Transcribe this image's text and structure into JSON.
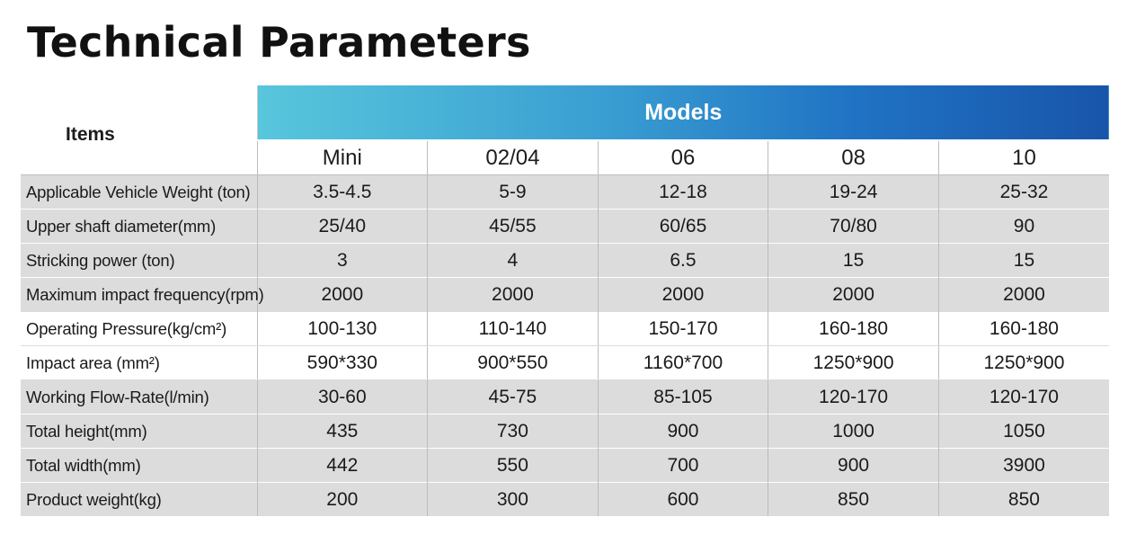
{
  "page": {
    "title": "Technical Parameters"
  },
  "table": {
    "items_header": "Items",
    "models_header": "Models",
    "models": [
      "Mini",
      "02/04",
      "06",
      "08",
      "10"
    ],
    "rows": [
      {
        "label": "Applicable Vehicle Weight (ton)",
        "values": [
          "3.5-4.5",
          "5-9",
          "12-18",
          "19-24",
          "25-32"
        ]
      },
      {
        "label": "Upper shaft diameter(mm)",
        "values": [
          "25/40",
          "45/55",
          "60/65",
          "70/80",
          "90"
        ]
      },
      {
        "label": "Stricking power (ton)",
        "values": [
          "3",
          "4",
          "6.5",
          "15",
          "15"
        ]
      },
      {
        "label": "Maximum impact frequency(rpm)",
        "values": [
          "2000",
          "2000",
          "2000",
          "2000",
          "2000"
        ]
      },
      {
        "label": "Operating Pressure(kg/cm²)",
        "values": [
          "100-130",
          "110-140",
          "150-170",
          "160-180",
          "160-180"
        ]
      },
      {
        "label": "Impact area (mm²)",
        "values": [
          "590*330",
          "900*550",
          "1160*700",
          "1250*900",
          "1250*900"
        ]
      },
      {
        "label": "Working Flow-Rate(l/min)",
        "values": [
          "30-60",
          "45-75",
          "85-105",
          "120-170",
          "120-170"
        ]
      },
      {
        "label": "Total height(mm)",
        "values": [
          "435",
          "730",
          "900",
          "1000",
          "1050"
        ]
      },
      {
        "label": "Total width(mm)",
        "values": [
          "442",
          "550",
          "700",
          "900",
          "3900"
        ]
      },
      {
        "label": "Product  weight(kg)",
        "values": [
          "200",
          "300",
          "600",
          "850",
          "850"
        ]
      }
    ]
  },
  "colors": {
    "header_gradient_start": "#58c6dc",
    "header_gradient_end": "#1855aa",
    "row_gray": "#dcdcdc",
    "row_white": "#ffffff"
  }
}
